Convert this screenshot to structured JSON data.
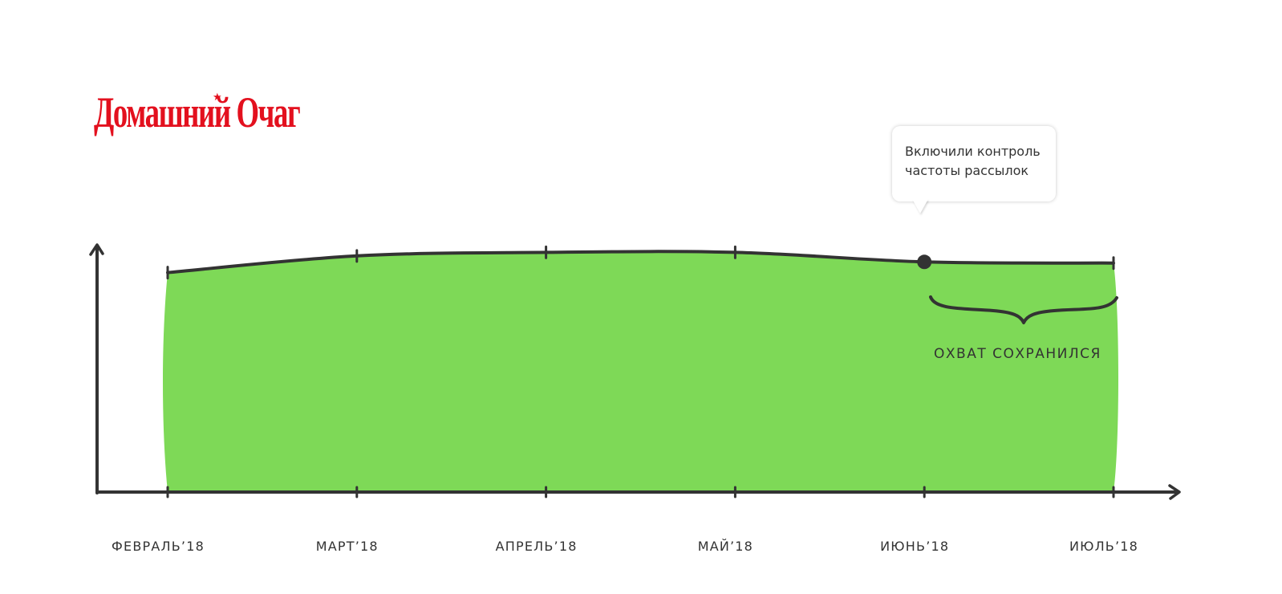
{
  "logo": {
    "text": "Домашний Очаг",
    "star": "★",
    "color": "#e3101e"
  },
  "callout": {
    "text": "Включили контроль\nчастоты рассылок"
  },
  "annotation": {
    "text": "ОХВАТ СОХРАНИЛСЯ"
  },
  "colors": {
    "fill": "#7ed957",
    "line": "#333333"
  },
  "chart_data": {
    "type": "area",
    "title": "",
    "xlabel": "",
    "ylabel": "",
    "categories": [
      "ФЕВРАЛЬ’18",
      "МАРТ’18",
      "АПРЕЛЬ’18",
      "МАЙ’18",
      "ИЮНЬ’18",
      "ИЮЛЬ’18"
    ],
    "values": [
      92,
      99,
      100.5,
      100.5,
      96.5,
      96
    ],
    "ylim": [
      0,
      105
    ],
    "highlight_point_index": 4,
    "grid": false,
    "axis_y_ticks": false
  }
}
